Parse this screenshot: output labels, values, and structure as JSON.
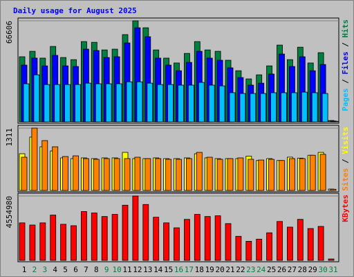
{
  "chart_data": [
    {
      "type": "bar",
      "title": "Daily usage for August 2025",
      "ylim": [
        0,
        66606
      ],
      "yticks": [
        66606
      ],
      "grid": true,
      "series": [
        {
          "name": "Hits",
          "color": "#008040",
          "values": [
            42900,
            46500,
            42000,
            49700,
            42400,
            41000,
            52900,
            52400,
            47400,
            47900,
            57500,
            66606,
            62000,
            47400,
            42000,
            38800,
            45100,
            52900,
            47400,
            46500,
            40600,
            33700,
            28300,
            31000,
            36900,
            50600,
            41000,
            49200,
            38800,
            45600,
            900
          ]
        },
        {
          "name": "Files",
          "color": "#0000ff",
          "values": [
            37400,
            42000,
            36900,
            43800,
            36900,
            36500,
            47900,
            47000,
            42400,
            42900,
            52000,
            62000,
            56100,
            42000,
            37400,
            33700,
            39200,
            46500,
            42000,
            40600,
            35600,
            29200,
            24200,
            25500,
            31500,
            44700,
            36500,
            42900,
            33700,
            37800,
            600
          ]
        },
        {
          "name": "Pages",
          "color": "#00c0ff",
          "values": [
            25100,
            31000,
            24600,
            24600,
            24600,
            24600,
            25500,
            25100,
            25100,
            25100,
            26400,
            26400,
            25500,
            24600,
            24600,
            24200,
            24200,
            26000,
            24200,
            23700,
            19200,
            18700,
            18700,
            18700,
            19200,
            19200,
            19200,
            19600,
            19200,
            18700,
            400
          ]
        }
      ]
    },
    {
      "type": "bar",
      "ylim": [
        0,
        1311
      ],
      "yticks": [
        1311
      ],
      "grid": true,
      "series": [
        {
          "name": "Visits",
          "color": "#ffff00",
          "values": [
            772,
            1122,
            918,
            830,
            685,
            670,
            685,
            670,
            685,
            685,
            801,
            670,
            670,
            685,
            670,
            670,
            685,
            772,
            685,
            670,
            670,
            670,
            720,
            630,
            670,
            630,
            700,
            680,
            740,
            800,
            29
          ]
        },
        {
          "name": "Sites",
          "color": "#ff8000",
          "values": [
            699,
            1311,
            1049,
            918,
            714,
            728,
            670,
            655,
            670,
            670,
            670,
            699,
            670,
            670,
            655,
            655,
            670,
            801,
            699,
            655,
            670,
            685,
            655,
            640,
            655,
            630,
            670,
            670,
            740,
            760,
            25
          ]
        }
      ]
    },
    {
      "type": "bar",
      "ylim": [
        0,
        4554980
      ],
      "yticks": [
        4554980
      ],
      "grid": true,
      "categories": [
        "1",
        "2",
        "3",
        "4",
        "5",
        "6",
        "7",
        "8",
        "9",
        "10",
        "11",
        "12",
        "13",
        "14",
        "15",
        "16",
        "17",
        "18",
        "19",
        "20",
        "21",
        "22",
        "23",
        "24",
        "25",
        "26",
        "27",
        "28",
        "29",
        "30",
        "31"
      ],
      "weekend_days": [
        2,
        3,
        9,
        10,
        16,
        17,
        23,
        24,
        30,
        31
      ],
      "series": [
        {
          "name": "KBytes",
          "color": "#ff0000",
          "values": [
            2653000,
            2500000,
            2653000,
            3204000,
            2553000,
            2453000,
            3454000,
            3354000,
            3103000,
            3254000,
            3904000,
            4554980,
            3954000,
            3053000,
            2653000,
            2303000,
            2903000,
            3254000,
            3103000,
            3154000,
            2603000,
            1702000,
            1351000,
            1502000,
            1952000,
            2753000,
            2353000,
            2903000,
            2253000,
            2403000,
            100000
          ]
        }
      ]
    },
    {
      "legend_separator": " / "
    }
  ]
}
